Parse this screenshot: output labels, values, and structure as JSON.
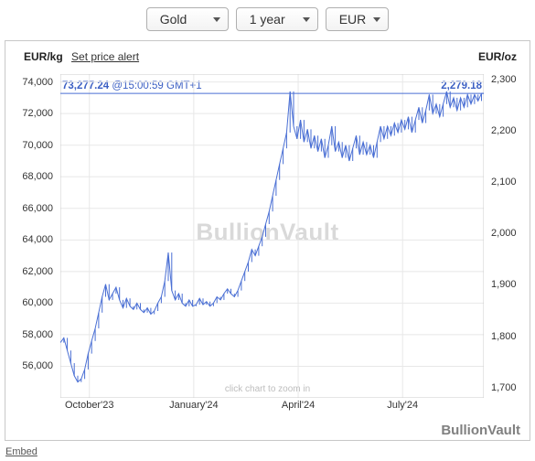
{
  "dropdowns": {
    "metal": "Gold",
    "period": "1 year",
    "currency": "EUR"
  },
  "header": {
    "left_unit": "EUR/kg",
    "alert_link": "Set price alert",
    "right_unit": "EUR/oz"
  },
  "price_labels": {
    "left_value": "73,277.24",
    "left_timestamp": "@15:00:59 GMT+1",
    "right_value": "2,279.18"
  },
  "watermark": "BullionVault",
  "zoom_hint": "click chart to zoom in",
  "brand": "BullionVault",
  "embed": "Embed",
  "chart": {
    "type": "line",
    "line_color": "#4a6fd4",
    "line_width": 1,
    "ref_line_color": "#4a6fd4",
    "ref_line_width": 1,
    "grid_color": "#e8e8e8",
    "axis_color": "#cccccc",
    "background_color": "#ffffff",
    "text_color": "#333333",
    "fontsize_tick": 11,
    "y_left": {
      "min": 54000,
      "max": 74500,
      "ticks": [
        56000,
        58000,
        60000,
        62000,
        64000,
        66000,
        68000,
        70000,
        72000,
        74000
      ],
      "labels": [
        "56,000",
        "58,000",
        "60,000",
        "62,000",
        "64,000",
        "66,000",
        "68,000",
        "70,000",
        "72,000",
        "74,000"
      ]
    },
    "y_right": {
      "min": 1680,
      "max": 2310,
      "ticks": [
        1700,
        1800,
        1900,
        2000,
        2100,
        2200,
        2300
      ],
      "labels": [
        "1,700",
        "1,800",
        "1,900",
        "2,000",
        "2,100",
        "2,200",
        "2,300"
      ]
    },
    "x": {
      "min": 0,
      "max": 365,
      "ticks": [
        25,
        115,
        205,
        295
      ],
      "labels": [
        "October'23",
        "January'24",
        "April'24",
        "July'24"
      ]
    },
    "ref_line_y": 73277,
    "series": [
      [
        0,
        57500
      ],
      [
        3,
        57800
      ],
      [
        6,
        57000
      ],
      [
        9,
        56200
      ],
      [
        12,
        55400
      ],
      [
        15,
        55000
      ],
      [
        18,
        55200
      ],
      [
        21,
        55800
      ],
      [
        24,
        56800
      ],
      [
        27,
        57600
      ],
      [
        30,
        58400
      ],
      [
        33,
        59400
      ],
      [
        36,
        60400
      ],
      [
        39,
        61200
      ],
      [
        42,
        60200
      ],
      [
        45,
        60600
      ],
      [
        48,
        61000
      ],
      [
        51,
        60200
      ],
      [
        54,
        59700
      ],
      [
        57,
        60300
      ],
      [
        60,
        59800
      ],
      [
        63,
        59600
      ],
      [
        66,
        60000
      ],
      [
        69,
        59600
      ],
      [
        72,
        59400
      ],
      [
        75,
        59700
      ],
      [
        78,
        59300
      ],
      [
        81,
        59500
      ],
      [
        84,
        60000
      ],
      [
        87,
        60400
      ],
      [
        90,
        61400
      ],
      [
        93,
        63200
      ],
      [
        96,
        60800
      ],
      [
        99,
        60200
      ],
      [
        102,
        60600
      ],
      [
        105,
        60000
      ],
      [
        108,
        59800
      ],
      [
        111,
        60200
      ],
      [
        114,
        59800
      ],
      [
        117,
        59900
      ],
      [
        120,
        60300
      ],
      [
        123,
        59900
      ],
      [
        126,
        60100
      ],
      [
        129,
        59800
      ],
      [
        132,
        60000
      ],
      [
        135,
        60400
      ],
      [
        138,
        60200
      ],
      [
        141,
        60600
      ],
      [
        144,
        60900
      ],
      [
        147,
        60600
      ],
      [
        150,
        60400
      ],
      [
        153,
        60800
      ],
      [
        156,
        61400
      ],
      [
        159,
        62000
      ],
      [
        162,
        62600
      ],
      [
        165,
        63400
      ],
      [
        168,
        63000
      ],
      [
        171,
        63600
      ],
      [
        174,
        64200
      ],
      [
        177,
        65000
      ],
      [
        180,
        65800
      ],
      [
        183,
        66800
      ],
      [
        186,
        67800
      ],
      [
        189,
        68800
      ],
      [
        192,
        69800
      ],
      [
        195,
        70800
      ],
      [
        198,
        73400
      ],
      [
        201,
        71200
      ],
      [
        204,
        70400
      ],
      [
        207,
        71600
      ],
      [
        210,
        70200
      ],
      [
        213,
        71000
      ],
      [
        216,
        69800
      ],
      [
        219,
        70600
      ],
      [
        222,
        69600
      ],
      [
        225,
        70400
      ],
      [
        228,
        69200
      ],
      [
        231,
        70000
      ],
      [
        234,
        71200
      ],
      [
        237,
        69600
      ],
      [
        240,
        70200
      ],
      [
        243,
        69200
      ],
      [
        246,
        70000
      ],
      [
        249,
        69000
      ],
      [
        252,
        69800
      ],
      [
        255,
        70600
      ],
      [
        258,
        69400
      ],
      [
        261,
        70200
      ],
      [
        264,
        69400
      ],
      [
        267,
        70000
      ],
      [
        270,
        69200
      ],
      [
        273,
        70200
      ],
      [
        276,
        71200
      ],
      [
        279,
        70400
      ],
      [
        282,
        71200
      ],
      [
        285,
        70600
      ],
      [
        288,
        71400
      ],
      [
        291,
        70800
      ],
      [
        294,
        71600
      ],
      [
        297,
        71000
      ],
      [
        300,
        71800
      ],
      [
        303,
        70800
      ],
      [
        306,
        71600
      ],
      [
        309,
        72400
      ],
      [
        312,
        71400
      ],
      [
        315,
        72200
      ],
      [
        318,
        73200
      ],
      [
        321,
        72000
      ],
      [
        324,
        72600
      ],
      [
        327,
        71800
      ],
      [
        330,
        72600
      ],
      [
        333,
        73400
      ],
      [
        336,
        72400
      ],
      [
        339,
        73000
      ],
      [
        342,
        72200
      ],
      [
        345,
        73000
      ],
      [
        348,
        72400
      ],
      [
        351,
        73200
      ],
      [
        354,
        72600
      ],
      [
        357,
        73200
      ],
      [
        360,
        72800
      ],
      [
        363,
        73277
      ],
      [
        365,
        73277
      ]
    ]
  }
}
